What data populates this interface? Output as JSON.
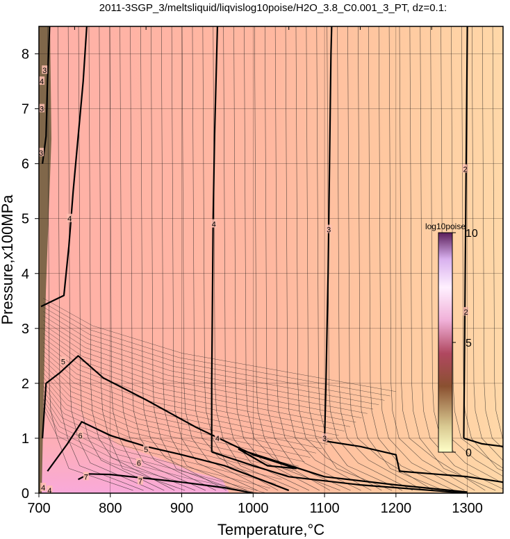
{
  "chart_data": {
    "type": "contour",
    "title": "2011-3SGP_3/meltsliquid/liqvislog10poise/H2O_3.8_C0.001_3_PT, dz=0.1:",
    "xlabel": "Temperature,°C",
    "ylabel": "Pressure,x100MPa",
    "xlim": [
      700,
      1350
    ],
    "ylim": [
      0,
      8.5
    ],
    "xticks": [
      700,
      800,
      900,
      1000,
      1100,
      1200,
      1300
    ],
    "yticks": [
      0,
      1,
      2,
      3,
      4,
      5,
      6,
      7,
      8
    ],
    "grid": true,
    "colorbar": {
      "title": "log10poise",
      "range": [
        0,
        10
      ],
      "ticks": [
        0,
        5,
        10
      ],
      "colors": [
        "#ffffc8",
        "#c8b478",
        "#784628",
        "#a03c50",
        "#e6a0d2",
        "#fff0ff",
        "#dcb4f0",
        "#5a1e5a"
      ],
      "placement": "right-inside"
    },
    "contours": [
      {
        "level": 4,
        "points": [
          [
            703,
            3.4
          ],
          [
            735,
            3.6
          ],
          [
            742,
            4.5
          ],
          [
            748,
            5.5
          ],
          [
            755,
            6.5
          ],
          [
            762,
            7.5
          ],
          [
            767,
            8.5
          ]
        ]
      },
      {
        "level": 4,
        "points": [
          [
            942,
            0.75
          ],
          [
            942,
            2.0
          ],
          [
            943,
            3.5
          ],
          [
            944,
            5.0
          ],
          [
            946,
            6.5
          ],
          [
            949,
            8.0
          ],
          [
            950,
            8.5
          ]
        ]
      },
      {
        "level": 4,
        "points": [
          [
            942,
            0.75
          ],
          [
            1000,
            0.5
          ],
          [
            1050,
            0.3
          ],
          [
            1150,
            0.15
          ],
          [
            1250,
            0.05
          ],
          [
            1300,
            0.0
          ]
        ]
      },
      {
        "level": 3,
        "points": [
          [
            1100,
            0.95
          ],
          [
            1102,
            2.0
          ],
          [
            1105,
            4.0
          ],
          [
            1107,
            6.0
          ],
          [
            1109,
            8.0
          ],
          [
            1110,
            8.5
          ]
        ]
      },
      {
        "level": 3,
        "points": [
          [
            1100,
            0.95
          ],
          [
            1150,
            0.85
          ],
          [
            1200,
            0.7
          ],
          [
            1205,
            0.4
          ],
          [
            1300,
            0.3
          ],
          [
            1350,
            0.2
          ]
        ]
      },
      {
        "level": 2,
        "points": [
          [
            1295,
            1.0
          ],
          [
            1296,
            2.5
          ],
          [
            1297,
            4.0
          ],
          [
            1298,
            5.5
          ],
          [
            1299,
            7.0
          ],
          [
            1300,
            8.5
          ]
        ]
      },
      {
        "level": 2,
        "points": [
          [
            1295,
            1.0
          ],
          [
            1320,
            0.9
          ],
          [
            1350,
            0.85
          ]
        ]
      },
      {
        "level": 5,
        "points": [
          [
            705,
            1.0
          ],
          [
            710,
            2.0
          ],
          [
            730,
            2.2
          ],
          [
            755,
            2.5
          ],
          [
            790,
            2.1
          ],
          [
            850,
            1.7
          ],
          [
            920,
            1.2
          ],
          [
            1000,
            0.7
          ],
          [
            1060,
            0.45
          ],
          [
            1020,
            0.5
          ],
          [
            980,
            0.8
          ],
          [
            1100,
            0.3
          ],
          [
            1200,
            0.15
          ],
          [
            1300,
            0.02
          ]
        ]
      },
      {
        "level": 6,
        "points": [
          [
            712,
            0.4
          ],
          [
            740,
            0.9
          ],
          [
            760,
            1.3
          ],
          [
            800,
            1.05
          ],
          [
            850,
            0.85
          ],
          [
            900,
            0.7
          ],
          [
            960,
            0.5
          ],
          [
            1000,
            0.3
          ],
          [
            1050,
            0.05
          ]
        ]
      },
      {
        "level": 7,
        "points": [
          [
            755,
            0.25
          ],
          [
            770,
            0.35
          ],
          [
            800,
            0.34
          ],
          [
            850,
            0.27
          ],
          [
            900,
            0.2
          ],
          [
            960,
            0.1
          ],
          [
            1000,
            0.0
          ]
        ]
      },
      {
        "level": 3,
        "points": [
          [
            705,
            6.0
          ],
          [
            710,
            6.5
          ],
          [
            712,
            7.5
          ],
          [
            715,
            8.5
          ]
        ]
      }
    ],
    "contour_labels": [
      {
        "text": "4",
        "x": 704,
        "y": 7.5
      },
      {
        "text": "4",
        "x": 743,
        "y": 5.0
      },
      {
        "text": "4",
        "x": 945,
        "y": 4.9
      },
      {
        "text": "4",
        "x": 950,
        "y": 1.0
      },
      {
        "text": "3",
        "x": 1106,
        "y": 4.8
      },
      {
        "text": "3",
        "x": 1100,
        "y": 1.0
      },
      {
        "text": "2",
        "x": 1297,
        "y": 5.9
      },
      {
        "text": "2",
        "x": 1298,
        "y": 3.3
      },
      {
        "text": "5",
        "x": 734,
        "y": 2.4
      },
      {
        "text": "5",
        "x": 850,
        "y": 0.8
      },
      {
        "text": "6",
        "x": 758,
        "y": 1.05
      },
      {
        "text": "6",
        "x": 840,
        "y": 0.55
      },
      {
        "text": "7",
        "x": 766,
        "y": 0.3
      },
      {
        "text": "7",
        "x": 842,
        "y": 0.22
      },
      {
        "text": "3",
        "x": 703,
        "y": 6.2
      },
      {
        "text": "3",
        "x": 704,
        "y": 7.0
      },
      {
        "text": "3",
        "x": 708,
        "y": 7.7
      },
      {
        "text": "4",
        "x": 706,
        "y": 0.1
      },
      {
        "text": "4",
        "x": 715,
        "y": 0.05
      }
    ]
  }
}
